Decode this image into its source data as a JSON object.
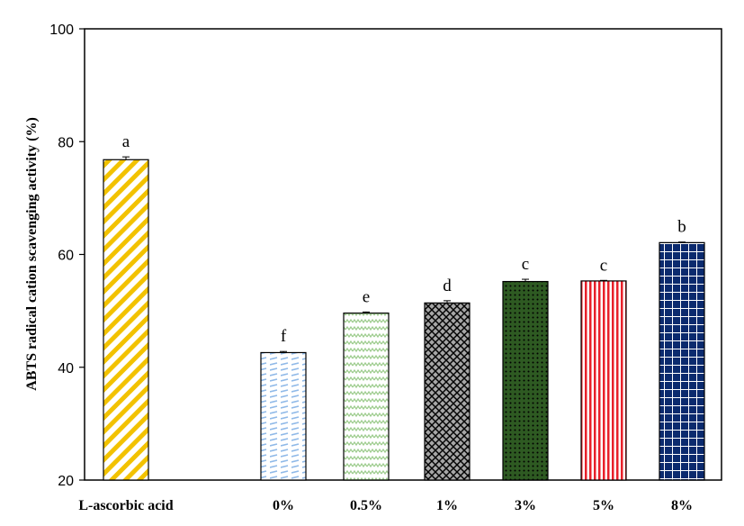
{
  "chart_data": {
    "type": "bar",
    "title": "",
    "xlabel": "",
    "ylabel": "ABTS radical cation scavenging activity (%)",
    "ylim": [
      20,
      100
    ],
    "yticks": [
      20,
      40,
      60,
      80,
      100
    ],
    "grid": false,
    "categories": [
      "L-ascorbic acid",
      "0%",
      "0.5%",
      "1%",
      "3%",
      "5%",
      "8%"
    ],
    "values": [
      76.8,
      42.6,
      49.6,
      51.4,
      55.2,
      55.3,
      62.1
    ],
    "errors": [
      0.5,
      0.2,
      0.2,
      0.4,
      0.4,
      0.1,
      0.1
    ],
    "significance_letters": [
      "a",
      "f",
      "e",
      "d",
      "c",
      "c",
      "b"
    ],
    "bar_patterns": [
      {
        "pattern": "diagonal-stripes",
        "color": "#f2c200",
        "background": "#ffffff"
      },
      {
        "pattern": "horizontal-dashes",
        "color": "#8fb9e8",
        "background": "#ffffff"
      },
      {
        "pattern": "zigzag",
        "color": "#9ccc8c",
        "background": "#ffffff"
      },
      {
        "pattern": "crosshatch",
        "color": "#000000",
        "background": "#a6a6a6"
      },
      {
        "pattern": "dots",
        "color": "#000000",
        "background": "#2e5a22"
      },
      {
        "pattern": "vertical-stripes",
        "color": "#e8202a",
        "background": "#ffffff"
      },
      {
        "pattern": "grid",
        "color": "#ffffff",
        "background": "#0b2a6e"
      }
    ]
  }
}
